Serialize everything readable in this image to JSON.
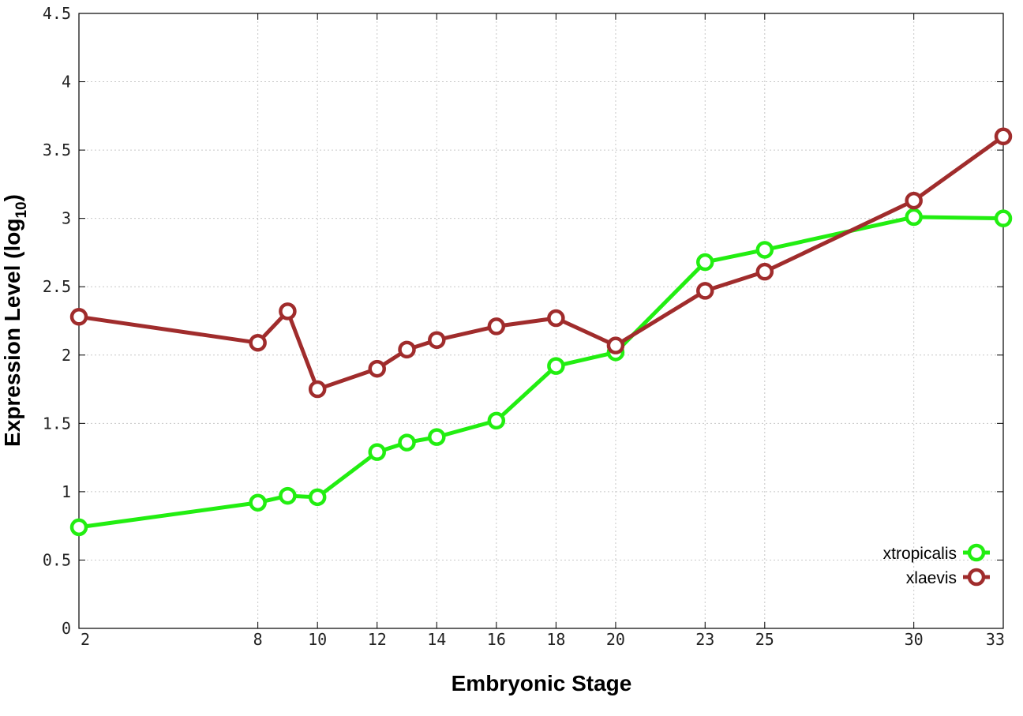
{
  "colors": {
    "xtropicalis": "#22ee11",
    "xlaevis": "#a02c2c"
  },
  "chart_data": {
    "type": "line",
    "title": "",
    "xlabel": "Embryonic Stage",
    "ylabel_main": "Expression Level (log",
    "ylabel_sub": "10",
    "ylabel_close": ")",
    "x": [
      2,
      8,
      9,
      10,
      12,
      13,
      14,
      16,
      18,
      20,
      23,
      25,
      30,
      33
    ],
    "xticks": [
      2,
      8,
      10,
      12,
      14,
      16,
      18,
      20,
      23,
      25,
      30,
      33
    ],
    "xtick_labels": [
      "2",
      "8",
      "10",
      "12",
      "14",
      "16",
      "18",
      "20",
      "23",
      "25",
      "30",
      "33"
    ],
    "xlim": [
      2,
      33
    ],
    "ylim": [
      0,
      4.5
    ],
    "yticks": [
      0,
      0.5,
      1,
      1.5,
      2,
      2.5,
      3,
      3.5,
      4,
      4.5
    ],
    "ytick_labels": [
      "0",
      "0.5",
      "1",
      "1.5",
      "2",
      "2.5",
      "3",
      "3.5",
      "4",
      "4.5"
    ],
    "grid": true,
    "legend_position": "bottom-right",
    "series": [
      {
        "name": "xtropicalis",
        "color": "#22ee11",
        "values": [
          0.74,
          0.92,
          0.97,
          0.96,
          1.29,
          1.36,
          1.4,
          1.52,
          1.92,
          2.02,
          2.68,
          2.77,
          3.01,
          3.0
        ]
      },
      {
        "name": "xlaevis",
        "color": "#a02c2c",
        "values": [
          2.28,
          2.09,
          2.32,
          1.75,
          1.9,
          2.04,
          2.11,
          2.21,
          2.27,
          2.07,
          2.47,
          2.61,
          3.13,
          3.6
        ]
      }
    ]
  }
}
